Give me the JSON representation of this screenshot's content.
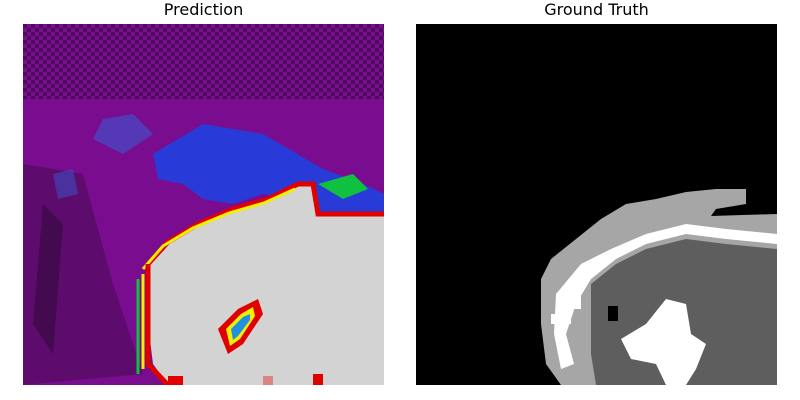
{
  "figure": {
    "panels": [
      {
        "title": "Prediction"
      },
      {
        "title": "Ground Truth"
      }
    ]
  },
  "colors": {
    "prediction_background": "#7a0d8f",
    "prediction_dark": "#3a0a45",
    "prediction_blue": "#1f3fe0",
    "prediction_foreground": "#d3d3d3",
    "boundary_red": "#e00000",
    "boundary_yellow": "#f0f000",
    "boundary_green": "#10c040",
    "ground_truth_background": "#000000",
    "ground_truth_light": "#a6a6a6",
    "ground_truth_dark": "#5e5e5e",
    "ground_truth_white": "#ffffff"
  }
}
